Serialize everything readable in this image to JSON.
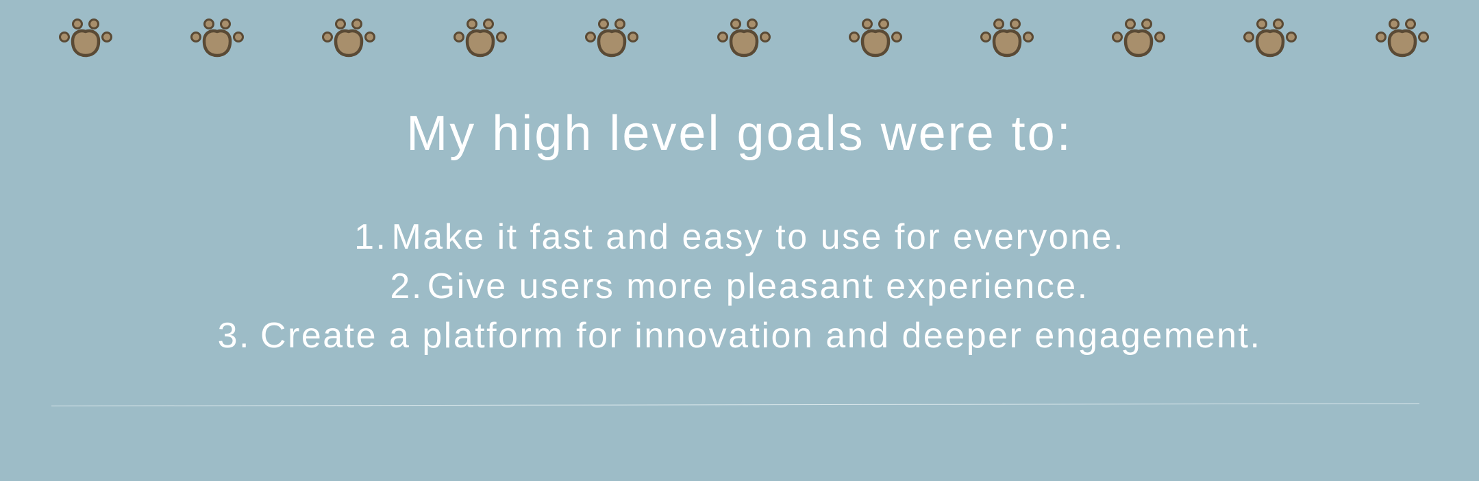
{
  "slide": {
    "background_color": "#9dbcc7",
    "paw_icon_count": 11,
    "paw_icon_name": "paw-print-icon",
    "paw_colors": {
      "outline": "#5a4a35",
      "fill": "#a88f6c"
    },
    "title": "My high level goals were to:",
    "goals": [
      {
        "number": "1.",
        "text": "Make it fast and easy to use for everyone."
      },
      {
        "number": "2.",
        "text": "Give users more pleasant experience."
      },
      {
        "number": "3.",
        "text": "Create a platform for innovation and deeper engagement."
      }
    ]
  }
}
